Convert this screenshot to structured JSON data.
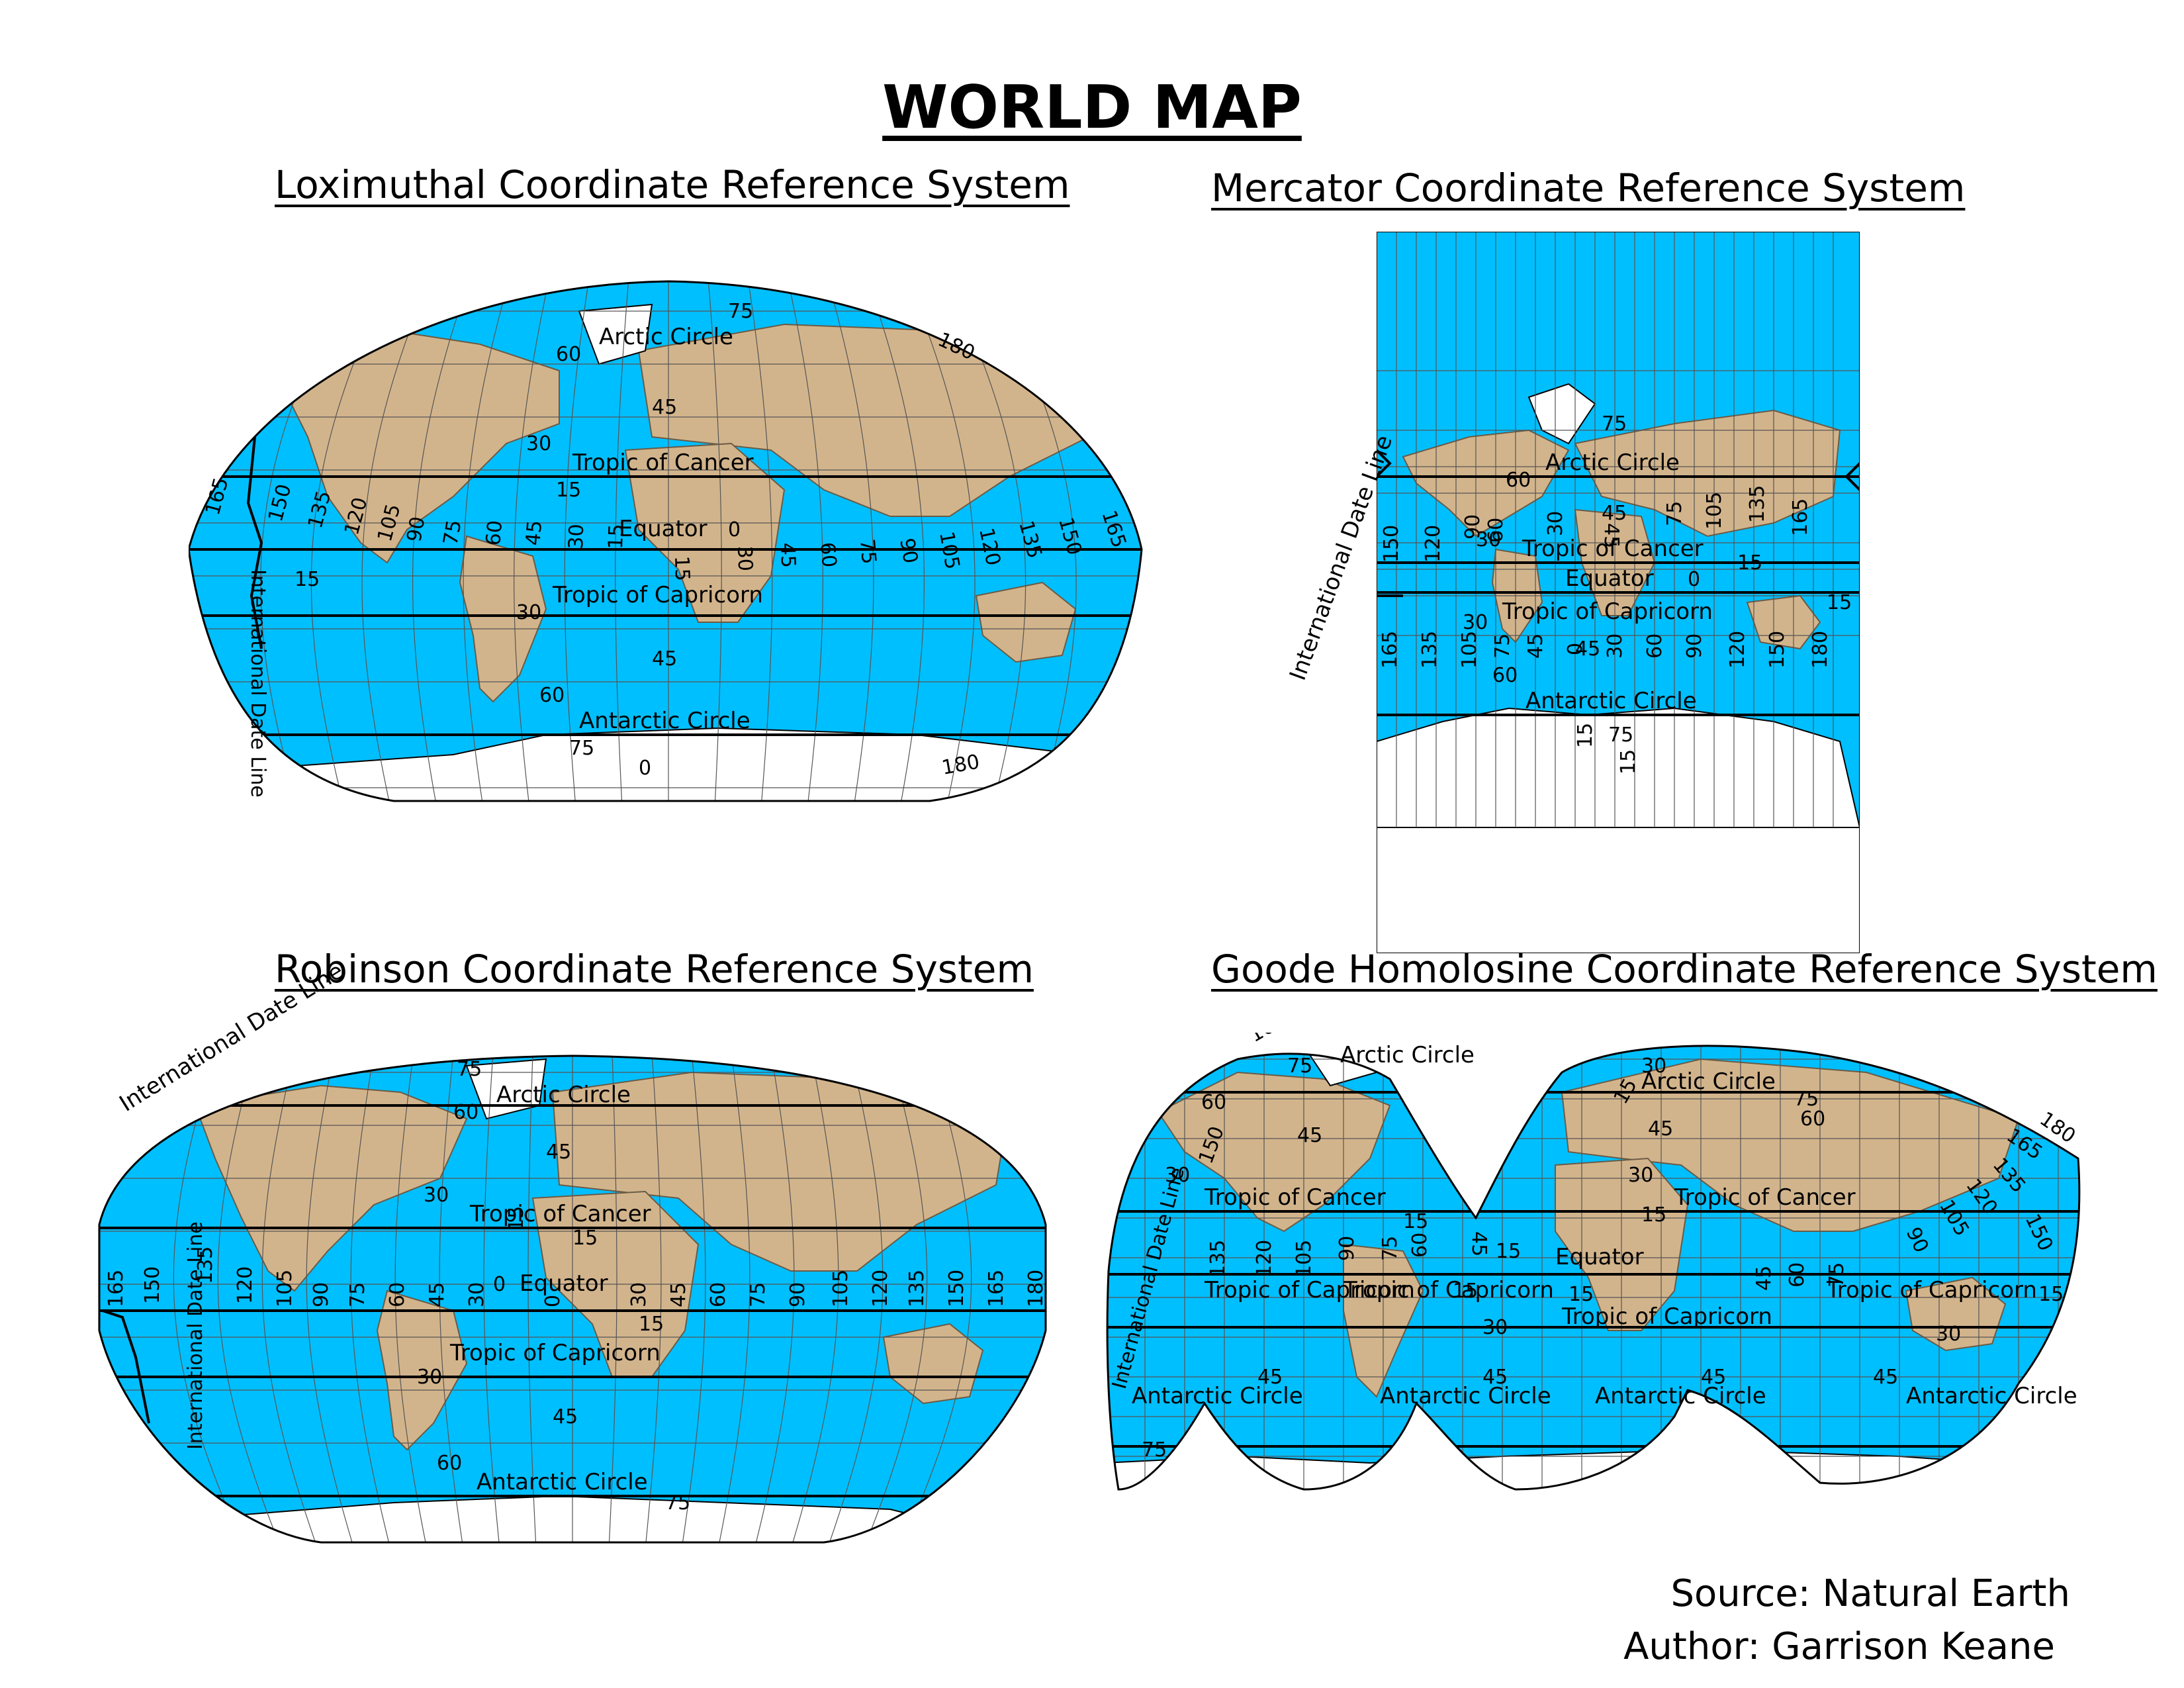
{
  "title": "WORLD MAP",
  "colors": {
    "ocean": "#00BFFF",
    "land": "#D2B48C",
    "ice": "#FFFFFF",
    "grid": "#555555",
    "reference_lines": "#000000"
  },
  "maps": [
    {
      "title": "Loximuthal Coordinate Reference System",
      "labels": {
        "arctic": "Arctic Circle",
        "cancer": "Tropic of Cancer",
        "equator": "Equator",
        "capricorn": "Tropic of Capricorn",
        "antarctic": "Antarctic Circle",
        "dateline": "International Date Line"
      }
    },
    {
      "title": "Mercator Coordinate Reference System",
      "labels": {
        "arctic": "Arctic Circle",
        "cancer": "Tropic of Cancer",
        "equator": "Equator",
        "capricorn": "Tropic of Capricorn",
        "antarctic": "Antarctic Circle",
        "dateline": "International Date Line"
      }
    },
    {
      "title": "Robinson Coordinate Reference System",
      "labels": {
        "arctic": "Arctic Circle",
        "cancer": "Tropic of Cancer",
        "equator": "Equator",
        "capricorn": "Tropic of Capricorn",
        "antarctic": "Antarctic Circle",
        "dateline": "International Date Line"
      }
    },
    {
      "title": "Goode Homolosine Coordinate Reference System",
      "labels": {
        "arctic": "Arctic Circle",
        "cancer": "Tropic of Cancer",
        "equator": "Equator",
        "capricorn": "Tropic of Capricorn",
        "antarctic": "Antarctic Circle",
        "dateline": "International Date Line"
      }
    }
  ],
  "credits": {
    "source": "Source: Natural Earth",
    "author": "Author: Garrison Keane"
  }
}
